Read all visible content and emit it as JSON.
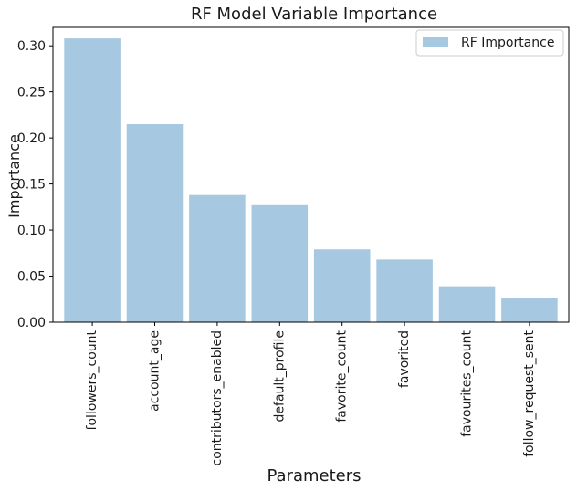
{
  "chart_data": {
    "type": "bar",
    "title": "RF Model Variable Importance",
    "xlabel": "Parameters",
    "ylabel": "Importance",
    "categories": [
      "followers_count",
      "account_age",
      "contributors_enabled",
      "default_profile",
      "favorite_count",
      "favorited",
      "favourites_count",
      "follow_request_sent"
    ],
    "series": [
      {
        "name": "RF Importance",
        "values": [
          0.308,
          0.215,
          0.138,
          0.127,
          0.079,
          0.068,
          0.039,
          0.026
        ],
        "color": "#a6c8e0"
      }
    ],
    "ylim": [
      0,
      0.32
    ],
    "yticks": [
      0.0,
      0.05,
      0.1,
      0.15,
      0.2,
      0.25,
      0.3
    ],
    "ytick_labels": [
      "0.00",
      "0.05",
      "0.10",
      "0.15",
      "0.20",
      "0.25",
      "0.30"
    ],
    "grid": false,
    "legend": {
      "position": "top-right"
    }
  }
}
